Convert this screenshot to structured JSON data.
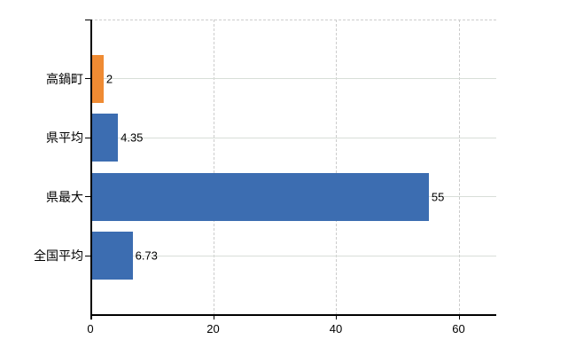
{
  "chart_data": {
    "type": "bar",
    "orientation": "horizontal",
    "title": "",
    "xlabel": "",
    "ylabel": "",
    "categories": [
      "高鍋町",
      "県平均",
      "県最大",
      "全国平均"
    ],
    "values": [
      2,
      4.35,
      55,
      6.73
    ],
    "value_labels": [
      "2",
      "4.35",
      "55",
      "6.73"
    ],
    "bar_colors": [
      "#ef8b33",
      "#3c6db1",
      "#3c6db1",
      "#3c6db1"
    ],
    "x_tick_labels": [
      "0",
      "20",
      "40",
      "60"
    ],
    "x_tick_values": [
      0,
      20,
      40,
      60
    ],
    "xlim": [
      0,
      66.1
    ],
    "grid": true,
    "legend_position": "none",
    "colors": {
      "highlight_bar": "#ef8b33",
      "default_bar": "#3c6db1",
      "axis": "#000000",
      "category_gridline": "#d8ded8",
      "dashed_gridline": "#cccccc",
      "background": "#ffffff",
      "text": "#000000"
    }
  }
}
